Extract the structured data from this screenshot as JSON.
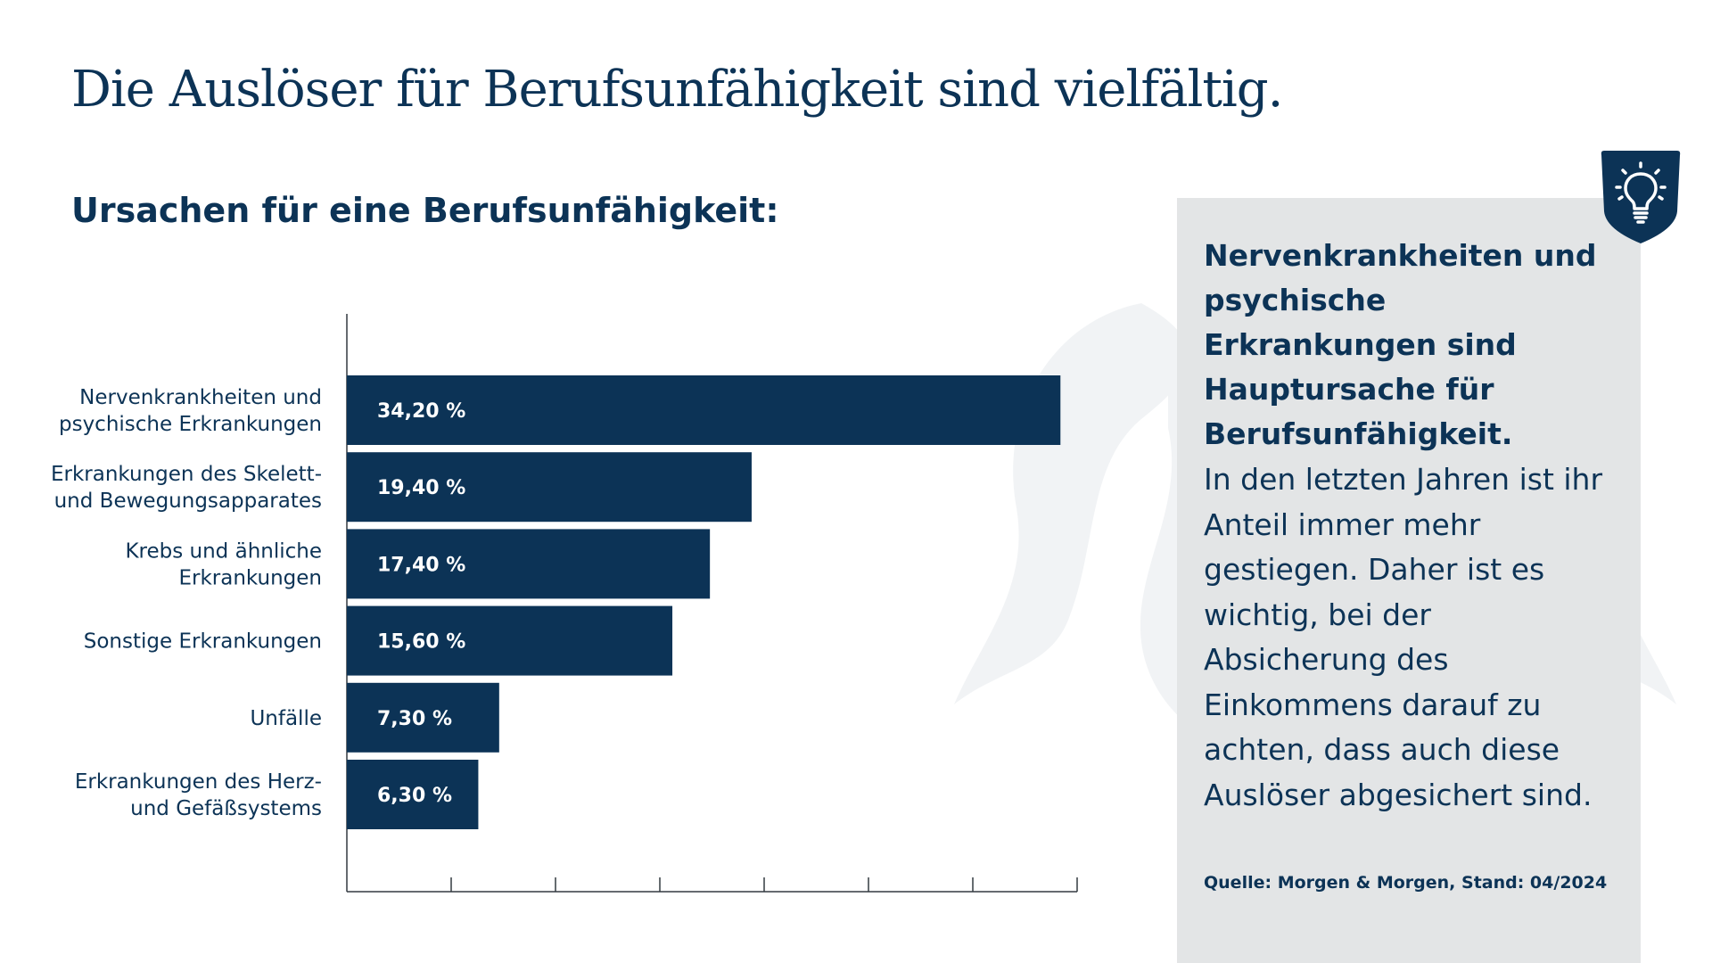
{
  "title": "Die Auslöser für Berufsunfähigkeit sind vielfältig.",
  "subtitle": "Ursachen für eine Berufsunfähigkeit:",
  "colors": {
    "primary": "#0c3356",
    "panel": "#e3e5e6",
    "bar_label": "#ffffff"
  },
  "chart_data": {
    "type": "bar",
    "orientation": "horizontal",
    "title": "Ursachen für eine Berufsunfähigkeit:",
    "categories": [
      [
        "Nervenkrankheiten und",
        "psychische Erkrankungen"
      ],
      [
        "Erkrankungen des Skelett-",
        "und Bewegungsapparates"
      ],
      [
        "Krebs und ähnliche",
        "Erkrankungen"
      ],
      [
        "Sonstige Erkrankungen"
      ],
      [
        "Unfälle"
      ],
      [
        "Erkrankungen des Herz-",
        "und Gefäßsystems"
      ]
    ],
    "values": [
      34.2,
      19.4,
      17.4,
      15.6,
      7.3,
      6.3
    ],
    "value_labels": [
      "34,20 %",
      "19,40 %",
      "17,40 %",
      "15,60 %",
      "7,30 %",
      "6,30 %"
    ],
    "xlim": [
      0,
      35
    ],
    "xtick_step": 5,
    "tick_labels_shown": false,
    "grid": false,
    "xlabel": "",
    "ylabel": ""
  },
  "sidebar": {
    "icon": "lightbulb-icon",
    "heading": "Nervenkrankheiten und psychische Erkrankungen sind Hauptursache für Berufsunfähigkeit.",
    "body": "In den letzten Jahren ist ihr Anteil immer mehr gestiegen. Daher ist es wichtig, bei der Absicherung des Einkommens darauf zu achten, dass auch diese Auslöser abgesichert sind.",
    "source": "Quelle: Morgen & Morgen, Stand: 04/2024"
  }
}
